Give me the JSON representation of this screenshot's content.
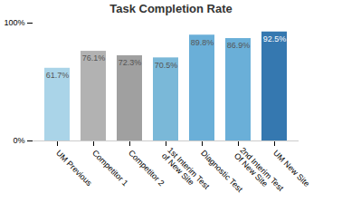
{
  "chart_data": {
    "type": "bar",
    "title": "Task Completion Rate",
    "categories": [
      "UM Previous",
      "Competitor 1",
      "Competitor 2",
      "1st Interim Test\nof New Site",
      "Diagnostic Test",
      "2nd Interim Test\nOf New Site",
      "UM New Site"
    ],
    "values": [
      61.7,
      76.1,
      72.3,
      70.5,
      89.8,
      86.9,
      92.5
    ],
    "value_labels": [
      "61.7%",
      "76.1%",
      "72.3%",
      "70.5%",
      "89.8%",
      "86.9%",
      "92.5%"
    ],
    "colors": [
      "#aad4e8",
      "#b2b2b2",
      "#a0a0a0",
      "#7ab8d8",
      "#6aafd8",
      "#6aafd8",
      "#3578b0"
    ],
    "ylim": [
      0,
      100
    ],
    "yticks": [
      {
        "value": 0,
        "label": "0%"
      },
      {
        "value": 100,
        "label": "100%"
      }
    ],
    "data_labels": true,
    "grid": false
  }
}
